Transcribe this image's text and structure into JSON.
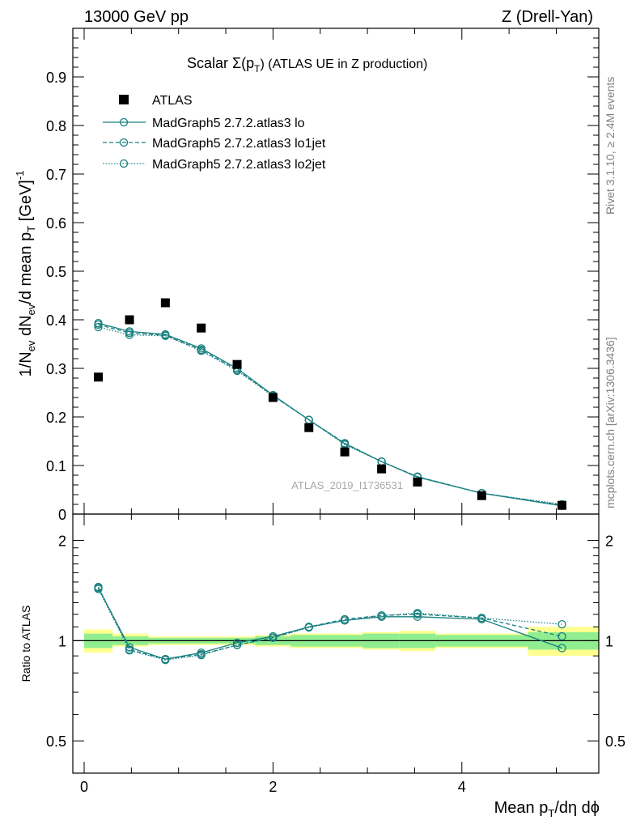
{
  "header": {
    "left": "13000 GeV pp",
    "right": "Z (Drell-Yan)"
  },
  "plot_title": {
    "prefix": "Scalar Σ(p",
    "sub": "T",
    "suffix": ") (ATLAS UE in Z production)"
  },
  "side_labels": {
    "rivet": "Rivet 3.1.10, ≥ 2.4M events",
    "mcplots": "mcplots.cern.ch [arXiv:1306.3436]"
  },
  "watermark": "ATLAS_2019_I1736531",
  "ylabel_main": {
    "p1": "1/N",
    "s1": "ev",
    "p2": " dN",
    "s2": "ev",
    "p3": "/d mean p",
    "s3": "T",
    "p4": " [GeV]",
    "sup": "-1"
  },
  "ylabel_ratio": "Ratio to ATLAS",
  "xlabel": {
    "p1": "Mean p",
    "s1": "T",
    "p2": "/dη dϕ"
  },
  "colors": {
    "mc": "#1a8080",
    "data": "#000000",
    "band_inner": "#90ee90",
    "band_outer": "#ffff90"
  },
  "chart_data": {
    "type": "scatter",
    "title": "Scalar Σ(pT) (ATLAS UE in Z production)",
    "xlabel": "Mean pT/dη dϕ",
    "ylabel": "1/Nev dNev/d mean pT [GeV]^-1",
    "xlim": [
      -0.12,
      5.45
    ],
    "ylim": [
      0,
      1.0
    ],
    "yticks": [
      "0.1",
      "0.2",
      "0.3",
      "0.4",
      "0.5",
      "0.6",
      "0.7",
      "0.8",
      "0.9"
    ],
    "ytick_values": [
      0.1,
      0.2,
      0.3,
      0.4,
      0.5,
      0.6,
      0.7,
      0.8,
      0.9
    ],
    "y_zero_label": "0",
    "xticks": [
      "0",
      "2",
      "4"
    ],
    "xtick_values": [
      0,
      2,
      4
    ],
    "x": [
      0.15,
      0.48,
      0.86,
      1.24,
      1.62,
      2.0,
      2.38,
      2.76,
      3.15,
      3.53,
      4.21,
      5.06
    ],
    "bin_edges": [
      0,
      0.3,
      0.68,
      1.05,
      1.43,
      1.81,
      2.19,
      2.57,
      2.95,
      3.34,
      3.72,
      4.7,
      5.45
    ],
    "legend": [
      "ATLAS",
      "MadGraph5 2.7.2.atlas3 lo",
      "MadGraph5 2.7.2.atlas3 lo1jet",
      "MadGraph5 2.7.2.atlas3 lo2jet"
    ],
    "data": {
      "name": "ATLAS",
      "values": [
        0.282,
        0.4,
        0.435,
        0.383,
        0.308,
        0.24,
        0.178,
        0.128,
        0.093,
        0.066,
        0.038,
        0.018
      ]
    },
    "series": [
      {
        "name": "MadGraph5 2.7.2.atlas3 lo",
        "style": "solid",
        "values": [
          0.393,
          0.376,
          0.37,
          0.341,
          0.3,
          0.245,
          0.194,
          0.145,
          0.108,
          0.076,
          0.043,
          0.017
        ]
      },
      {
        "name": "MadGraph5 2.7.2.atlas3 lo1jet",
        "style": "dashed",
        "values": [
          0.39,
          0.373,
          0.368,
          0.338,
          0.297,
          0.244,
          0.194,
          0.146,
          0.108,
          0.077,
          0.043,
          0.0186
        ]
      },
      {
        "name": "MadGraph5 2.7.2.atlas3 lo2jet",
        "style": "dotted",
        "values": [
          0.385,
          0.369,
          0.367,
          0.336,
          0.295,
          0.243,
          0.194,
          0.143,
          0.108,
          0.077,
          0.043,
          0.0202
        ]
      }
    ],
    "ratio": {
      "ylabel": "Ratio to ATLAS",
      "ylim_log": [
        0.4,
        2.4
      ],
      "yticks": [
        "0.5",
        "1",
        "2"
      ],
      "ytick_values": [
        0.5,
        1,
        2
      ],
      "band_inner": [
        [
          0.95,
          1.05
        ],
        [
          0.97,
          1.03
        ],
        [
          0.98,
          1.02
        ],
        [
          0.98,
          1.02
        ],
        [
          0.98,
          1.02
        ],
        [
          0.97,
          1.03
        ],
        [
          0.96,
          1.04
        ],
        [
          0.96,
          1.04
        ],
        [
          0.95,
          1.05
        ],
        [
          0.95,
          1.05
        ],
        [
          0.96,
          1.04
        ],
        [
          0.94,
          1.06
        ]
      ],
      "band_outer": [
        [
          0.92,
          1.08
        ],
        [
          0.96,
          1.05
        ],
        [
          0.97,
          1.03
        ],
        [
          0.97,
          1.03
        ],
        [
          0.97,
          1.03
        ],
        [
          0.96,
          1.04
        ],
        [
          0.95,
          1.05
        ],
        [
          0.95,
          1.05
        ],
        [
          0.94,
          1.06
        ],
        [
          0.93,
          1.07
        ],
        [
          0.95,
          1.05
        ],
        [
          0.9,
          1.1
        ]
      ],
      "series": [
        {
          "name": "MadGraph5 2.7.2.atlas3 lo",
          "style": "solid",
          "values": [
            1.44,
            0.955,
            0.88,
            0.92,
            0.985,
            1.03,
            1.1,
            1.15,
            1.18,
            1.18,
            1.16,
            0.95
          ]
        },
        {
          "name": "MadGraph5 2.7.2.atlas3 lo1jet",
          "style": "dashed",
          "values": [
            1.45,
            0.94,
            0.88,
            0.91,
            0.97,
            1.02,
            1.1,
            1.16,
            1.19,
            1.2,
            1.17,
            1.03
          ]
        },
        {
          "name": "MadGraph5 2.7.2.atlas3 lo2jet",
          "style": "dotted",
          "values": [
            1.43,
            0.935,
            0.875,
            0.905,
            0.97,
            1.02,
            1.095,
            1.15,
            1.19,
            1.21,
            1.17,
            1.12
          ]
        }
      ]
    }
  }
}
